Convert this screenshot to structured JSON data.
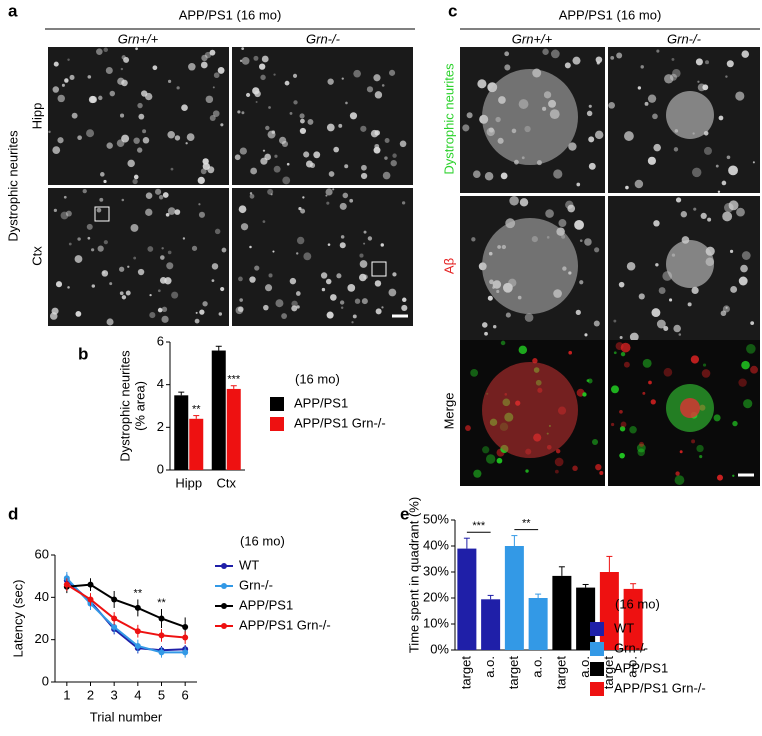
{
  "panels": {
    "a": {
      "letter": "a",
      "title": "APP/PS1 (16 mo)",
      "columns": [
        "Grn+/+",
        "Grn-/-"
      ],
      "rows": [
        "Hipp",
        "Ctx"
      ],
      "side_label": "Dystrophic neurites"
    },
    "c": {
      "letter": "c",
      "title": "APP/PS1 (16 mo)",
      "columns": [
        "Grn+/+",
        "Grn-/-"
      ],
      "rows": [
        "Dystrophic neurites",
        "Aβ",
        "Merge"
      ]
    }
  },
  "chart_data": [
    {
      "type": "bar",
      "letter": "b",
      "ylabel": [
        "Dystrophic neurites",
        "(% area)"
      ],
      "legend_title": "(16 mo)",
      "categories": [
        "Hipp",
        "Ctx"
      ],
      "series": [
        {
          "name": "APP/PS1",
          "color": "#000000",
          "values": [
            3.5,
            5.6
          ],
          "errors": [
            0.15,
            0.2
          ]
        },
        {
          "name": "APP/PS1 Grn-/-",
          "color": "#ee1111",
          "values": [
            2.4,
            3.8
          ],
          "errors": [
            0.15,
            0.15
          ]
        }
      ],
      "annotations": [
        "**",
        "***"
      ],
      "ylim": [
        0,
        6
      ],
      "yticks": [
        0,
        2,
        4,
        6
      ]
    },
    {
      "type": "line",
      "letter": "d",
      "xlabel": "Trial number",
      "ylabel": "Latency (sec)",
      "legend_title": "(16 mo)",
      "x": [
        1,
        2,
        3,
        4,
        5,
        6
      ],
      "series": [
        {
          "name": "WT",
          "color": "#1f1fa8",
          "values": [
            48,
            38,
            25,
            16,
            15,
            15.5
          ],
          "errors": [
            3,
            3,
            2.5,
            2.5,
            2,
            2
          ]
        },
        {
          "name": "Grn-/-",
          "color": "#3399e6",
          "values": [
            49,
            37,
            26,
            17,
            14,
            14
          ],
          "errors": [
            3,
            3,
            3,
            3,
            2.5,
            2.5
          ]
        },
        {
          "name": "APP/PS1",
          "color": "#000000",
          "values": [
            45,
            46,
            39,
            35,
            30,
            26
          ],
          "errors": [
            3,
            3,
            4,
            4,
            4.5,
            4.5
          ]
        },
        {
          "name": "APP/PS1 Grn-/-",
          "color": "#ee1111",
          "values": [
            46,
            39,
            30,
            24,
            22,
            21
          ],
          "errors": [
            3,
            3,
            3,
            3,
            3,
            3
          ]
        }
      ],
      "annotations": [
        {
          "text": "**",
          "x": 4
        },
        {
          "text": "**",
          "x": 5
        }
      ],
      "xlim": [
        0.5,
        6.5
      ],
      "xticks": [
        1,
        2,
        3,
        4,
        5,
        6
      ],
      "ylim": [
        0,
        60
      ],
      "yticks": [
        0,
        20,
        40,
        60
      ]
    },
    {
      "type": "bar",
      "letter": "e",
      "ylabel": "Time spent in quadrant (%)",
      "legend_title": "(16 mo)",
      "categories": [
        "target",
        "a.o."
      ],
      "series": [
        {
          "name": "WT",
          "color": "#1f1fa8",
          "values": [
            39,
            19.5
          ],
          "errors": [
            4,
            1.5
          ]
        },
        {
          "name": "Grn-/-",
          "color": "#3399e6",
          "values": [
            40,
            20
          ],
          "errors": [
            4,
            1.5
          ]
        },
        {
          "name": "APP/PS1",
          "color": "#000000",
          "values": [
            28.5,
            24
          ],
          "errors": [
            3.5,
            1.2
          ]
        },
        {
          "name": "APP/PS1 Grn-/-",
          "color": "#ee1111",
          "values": [
            30,
            23.5
          ],
          "errors": [
            6,
            2
          ]
        }
      ],
      "annotations": [
        "***",
        "**"
      ],
      "ylim": [
        0,
        50
      ],
      "yticks": [
        {
          "value": 0,
          "label": "0%"
        },
        {
          "value": 10,
          "label": "10%"
        },
        {
          "value": 20,
          "label": "20%"
        },
        {
          "value": 30,
          "label": "30%"
        },
        {
          "value": 40,
          "label": "40%"
        },
        {
          "value": 50,
          "label": "50%"
        }
      ]
    }
  ]
}
